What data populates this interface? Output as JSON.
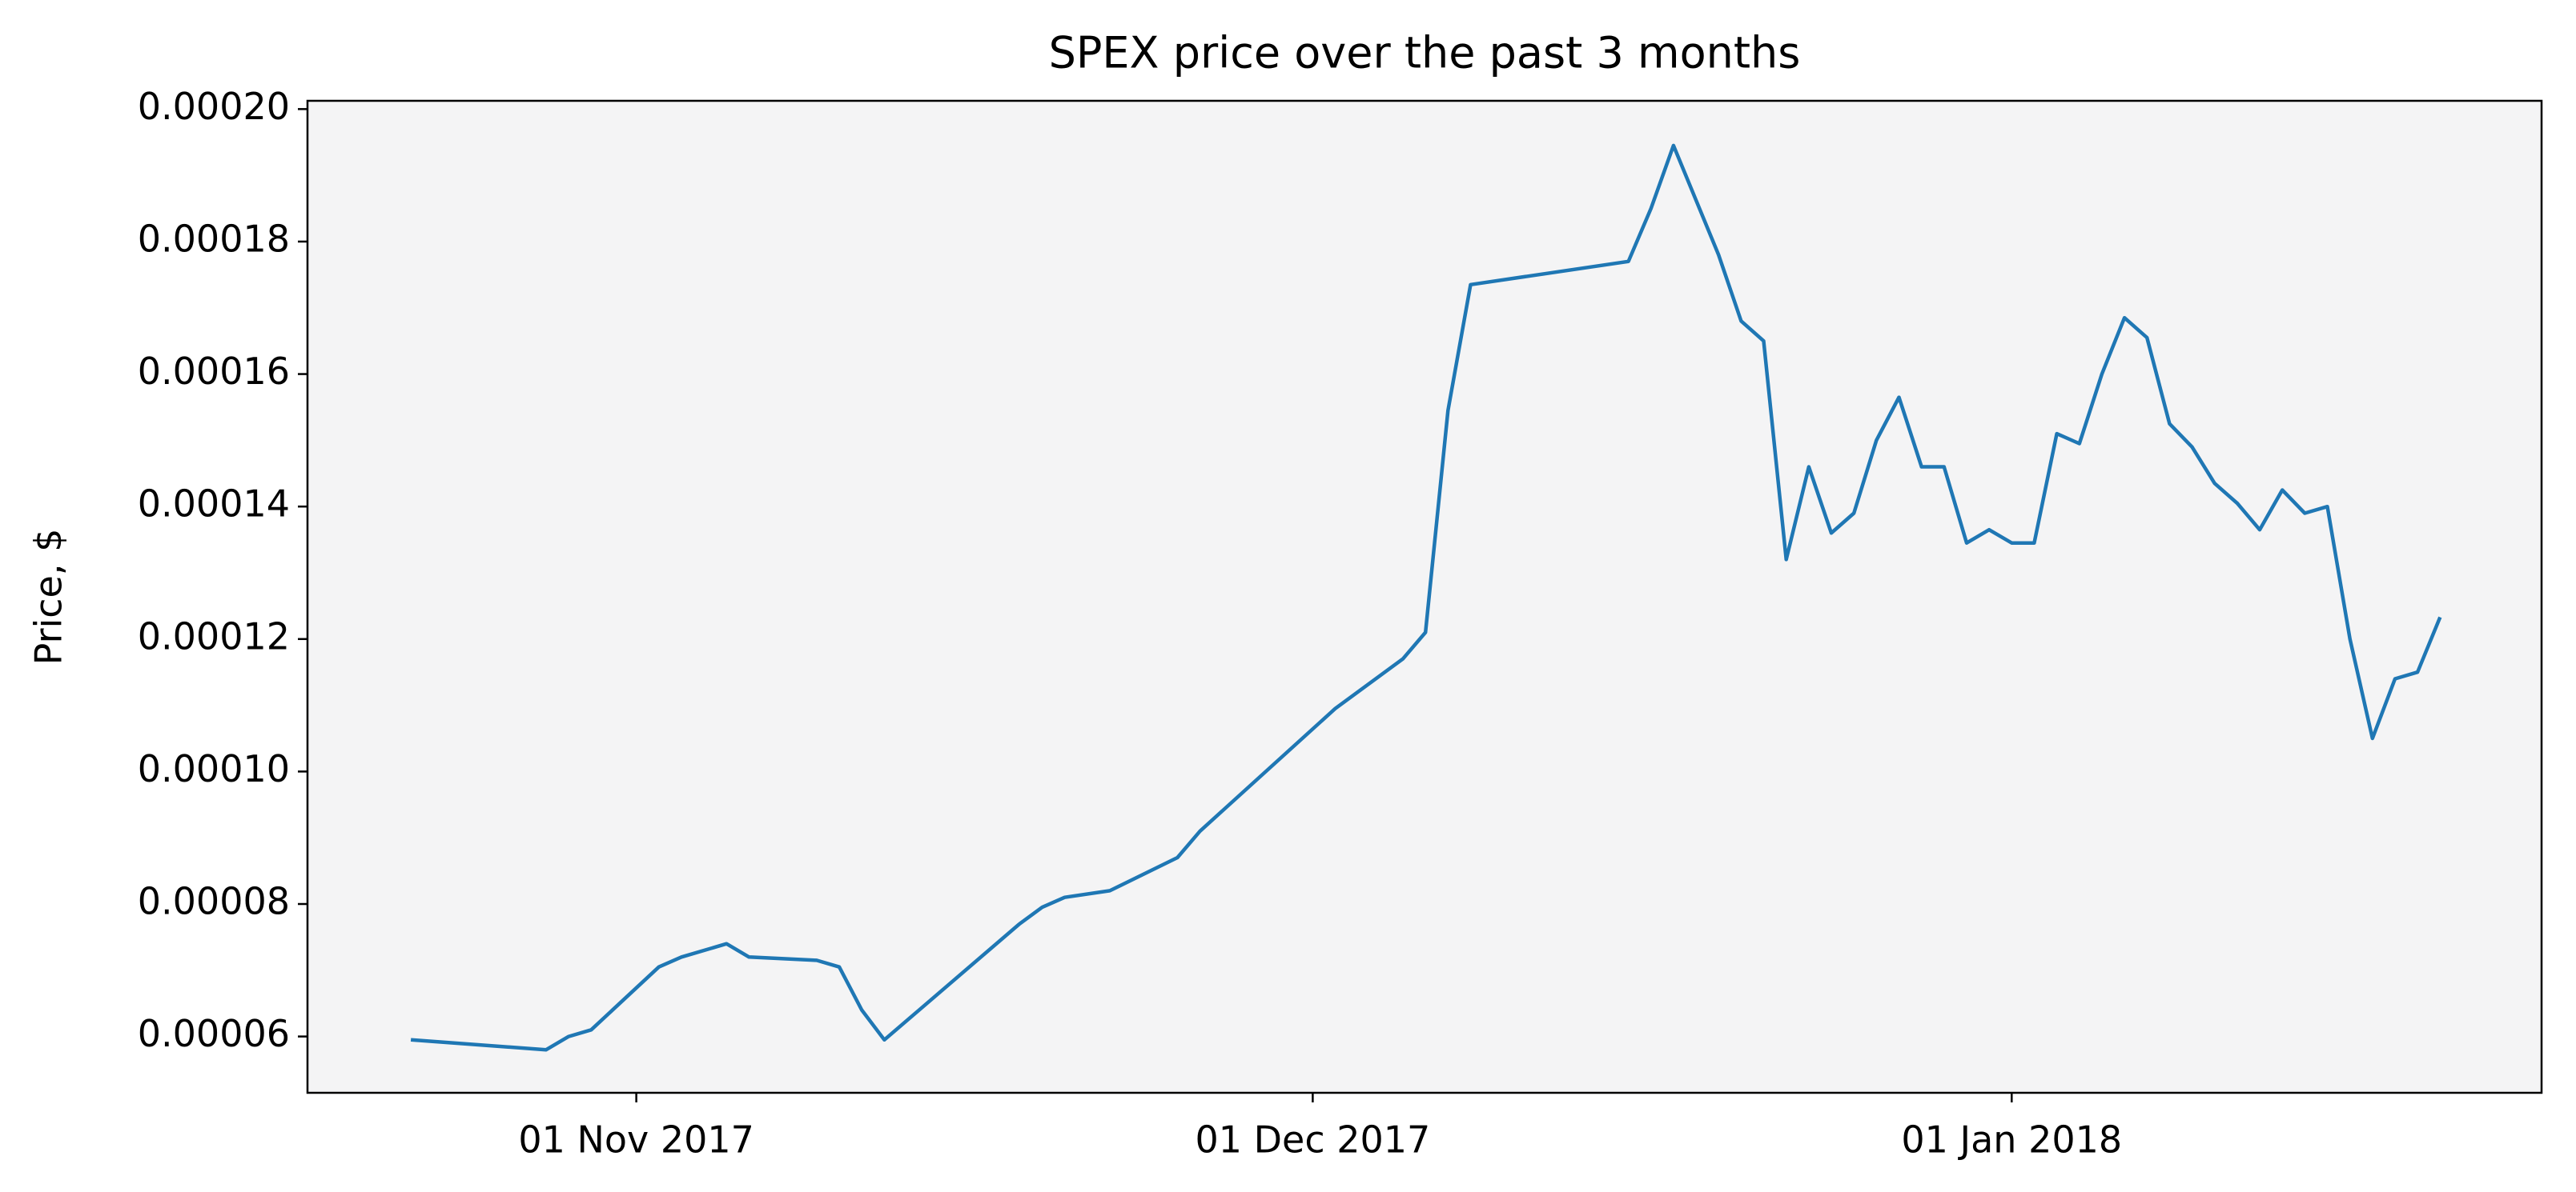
{
  "chart_data": {
    "type": "line",
    "title": "SPEX price over the past 3 months",
    "y_label": "Price, $",
    "x": [
      "2017-10-22",
      "2017-10-28",
      "2017-10-29",
      "2017-10-30",
      "2017-11-02",
      "2017-11-03",
      "2017-11-05",
      "2017-11-06",
      "2017-11-09",
      "2017-11-10",
      "2017-11-11",
      "2017-11-12",
      "2017-11-18",
      "2017-11-19",
      "2017-11-20",
      "2017-11-22",
      "2017-11-25",
      "2017-11-26",
      "2017-12-02",
      "2017-12-05",
      "2017-12-06",
      "2017-12-07",
      "2017-12-08",
      "2017-12-15",
      "2017-12-16",
      "2017-12-17",
      "2017-12-19",
      "2017-12-20",
      "2017-12-21",
      "2017-12-22",
      "2017-12-23",
      "2017-12-24",
      "2017-12-25",
      "2017-12-26",
      "2017-12-27",
      "2017-12-28",
      "2017-12-29",
      "2017-12-30",
      "2017-12-31",
      "2018-01-01",
      "2018-01-02",
      "2018-01-03",
      "2018-01-04",
      "2018-01-05",
      "2018-01-06",
      "2018-01-07",
      "2018-01-08",
      "2018-01-09",
      "2018-01-10",
      "2018-01-11",
      "2018-01-12",
      "2018-01-13",
      "2018-01-14",
      "2018-01-15",
      "2018-01-16",
      "2018-01-17",
      "2018-01-18",
      "2018-01-19",
      "2018-01-20"
    ],
    "series": [
      {
        "name": "SPEX",
        "color": "#1f77b4",
        "values": [
          5.95e-05,
          5.8e-05,
          6e-05,
          6.1e-05,
          7.05e-05,
          7.2e-05,
          7.4e-05,
          7.2e-05,
          7.15e-05,
          7.05e-05,
          6.4e-05,
          5.95e-05,
          7.7e-05,
          7.95e-05,
          8.1e-05,
          8.2e-05,
          8.7e-05,
          9.1e-05,
          0.0001095,
          0.000117,
          0.000121,
          0.0001545,
          0.0001735,
          0.000177,
          0.000185,
          0.0001945,
          0.000178,
          0.000168,
          0.000165,
          0.000132,
          0.000146,
          0.000136,
          0.000139,
          0.00015,
          0.0001565,
          0.000146,
          0.000146,
          0.0001345,
          0.0001365,
          0.0001345,
          0.0001345,
          0.000151,
          0.0001495,
          0.00016,
          0.0001685,
          0.0001655,
          0.0001525,
          0.000149,
          0.0001435,
          0.0001405,
          0.0001365,
          0.0001425,
          0.000139,
          0.00014,
          0.00012,
          0.000105,
          0.000114,
          0.000115,
          0.0001233
        ]
      }
    ],
    "xlim": [
      "2017-10-17T10:00:00",
      "2018-01-24T12:00:00"
    ],
    "xticks": [
      {
        "value": "2017-11-01",
        "label": "01 Nov 2017"
      },
      {
        "value": "2017-12-01",
        "label": "01 Dec 2017"
      },
      {
        "value": "2018-01-01",
        "label": "01 Jan 2018"
      }
    ],
    "ylim": [
      5.15e-05,
      0.00020125
    ],
    "yticks": [
      {
        "value": 6e-05,
        "label": "0.00006"
      },
      {
        "value": 8e-05,
        "label": "0.00008"
      },
      {
        "value": 0.0001,
        "label": "0.00010"
      },
      {
        "value": 0.00012,
        "label": "0.00012"
      },
      {
        "value": 0.00014,
        "label": "0.00014"
      },
      {
        "value": 0.00016,
        "label": "0.00016"
      },
      {
        "value": 0.00018,
        "label": "0.00018"
      },
      {
        "value": 0.0002,
        "label": "0.00020"
      }
    ],
    "background": "#f4f4f5"
  }
}
